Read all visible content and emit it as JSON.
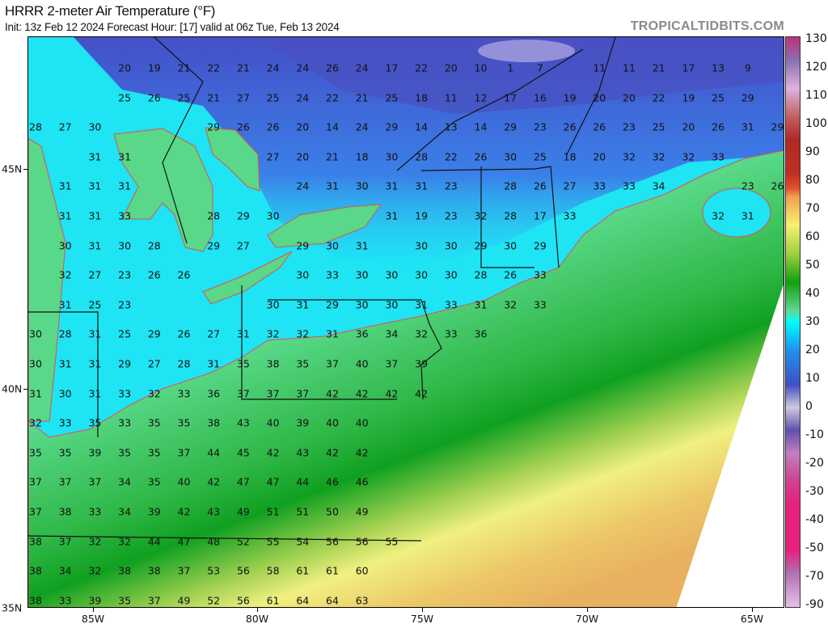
{
  "header": {
    "title": "HRRR 2-meter Air Temperature (°F)",
    "subtitle": "Init: 13z Feb 12 2024   Forecast Hour: [17]   valid at 06z Tue, Feb 13 2024",
    "watermark": "TROPICALTIDBITS.COM"
  },
  "colorbar": {
    "unit": "°F",
    "labels": [
      "130",
      "120",
      "110",
      "100",
      "90",
      "80",
      "70",
      "60",
      "50",
      "40",
      "30",
      "20",
      "10",
      "0",
      "-10",
      "-20",
      "-30",
      "-40",
      "-50",
      "-70",
      "-90"
    ]
  },
  "axes": {
    "longitudes": [
      "85W",
      "80W",
      "75W",
      "70W",
      "65W"
    ],
    "latitudes": [
      "45N",
      "40N",
      "35N"
    ]
  },
  "map": {
    "colors": {
      "cold": "#3a60d0",
      "freezing": "#00ffff",
      "mild": "#58d888",
      "warm": "#10a020",
      "hot": "#ecc060",
      "freezing_line": "#e05050",
      "no_data": "#ffffff"
    },
    "temperature_rows": [
      [
        "",
        "",
        "",
        "20",
        "19",
        "21",
        "22",
        "21",
        "24",
        "24",
        "26",
        "24",
        "17",
        "22",
        "20",
        "10",
        "1",
        "7",
        "",
        "11",
        "11",
        "21",
        "17",
        "13",
        "9",
        ""
      ],
      [
        "",
        "",
        "",
        "25",
        "26",
        "25",
        "21",
        "27",
        "25",
        "24",
        "22",
        "21",
        "25",
        "18",
        "11",
        "12",
        "17",
        "16",
        "19",
        "20",
        "20",
        "22",
        "19",
        "25",
        "29",
        ""
      ],
      [
        "28",
        "27",
        "30",
        "",
        "",
        "",
        "29",
        "26",
        "26",
        "20",
        "14",
        "24",
        "29",
        "14",
        "13",
        "14",
        "29",
        "23",
        "26",
        "26",
        "23",
        "25",
        "20",
        "26",
        "31",
        "29"
      ],
      [
        "",
        "",
        "31",
        "31",
        "",
        "",
        "",
        "",
        "27",
        "20",
        "21",
        "18",
        "30",
        "28",
        "22",
        "26",
        "30",
        "25",
        "18",
        "20",
        "32",
        "32",
        "32",
        "33",
        "",
        ""
      ],
      [
        "",
        "31",
        "31",
        "31",
        "",
        "",
        "",
        "",
        "",
        "24",
        "31",
        "30",
        "31",
        "31",
        "23",
        "",
        "28",
        "26",
        "27",
        "33",
        "33",
        "34",
        "",
        "",
        "23",
        "26"
      ],
      [
        "",
        "31",
        "31",
        "33",
        "",
        "",
        "28",
        "29",
        "30",
        "",
        "",
        "",
        "31",
        "19",
        "23",
        "32",
        "28",
        "17",
        "33",
        "",
        "",
        "",
        "",
        "32",
        "31",
        ""
      ],
      [
        "",
        "30",
        "31",
        "30",
        "28",
        "",
        "29",
        "27",
        "",
        "29",
        "30",
        "31",
        "",
        "30",
        "30",
        "29",
        "30",
        "29",
        "",
        "",
        "",
        "",
        "",
        "",
        "",
        ""
      ],
      [
        "",
        "32",
        "27",
        "23",
        "26",
        "26",
        "",
        "",
        "",
        "30",
        "33",
        "30",
        "30",
        "30",
        "30",
        "28",
        "26",
        "33"
      ],
      [
        "",
        "31",
        "25",
        "23",
        "",
        "",
        "",
        "",
        "30",
        "31",
        "29",
        "30",
        "30",
        "31",
        "33",
        "31",
        "32",
        "33"
      ],
      [
        "30",
        "28",
        "31",
        "25",
        "29",
        "26",
        "27",
        "31",
        "32",
        "32",
        "31",
        "36",
        "34",
        "32",
        "33",
        "36"
      ],
      [
        "30",
        "31",
        "31",
        "29",
        "27",
        "28",
        "31",
        "35",
        "38",
        "35",
        "37",
        "40",
        "37",
        "39"
      ],
      [
        "31",
        "30",
        "31",
        "33",
        "32",
        "33",
        "36",
        "37",
        "37",
        "37",
        "42",
        "42",
        "42",
        "42"
      ],
      [
        "32",
        "33",
        "35",
        "33",
        "35",
        "35",
        "38",
        "43",
        "40",
        "39",
        "40",
        "40"
      ],
      [
        "35",
        "35",
        "39",
        "35",
        "35",
        "37",
        "44",
        "45",
        "42",
        "43",
        "42",
        "42"
      ],
      [
        "37",
        "37",
        "37",
        "34",
        "35",
        "40",
        "42",
        "47",
        "47",
        "44",
        "46",
        "46"
      ],
      [
        "37",
        "38",
        "33",
        "34",
        "39",
        "42",
        "43",
        "49",
        "51",
        "51",
        "50",
        "49"
      ],
      [
        "38",
        "37",
        "32",
        "32",
        "44",
        "47",
        "48",
        "52",
        "55",
        "54",
        "56",
        "56",
        "55"
      ],
      [
        "38",
        "34",
        "32",
        "38",
        "38",
        "37",
        "53",
        "56",
        "58",
        "61",
        "61",
        "60"
      ],
      [
        "38",
        "33",
        "39",
        "35",
        "37",
        "49",
        "52",
        "56",
        "61",
        "64",
        "64",
        "63"
      ]
    ]
  }
}
